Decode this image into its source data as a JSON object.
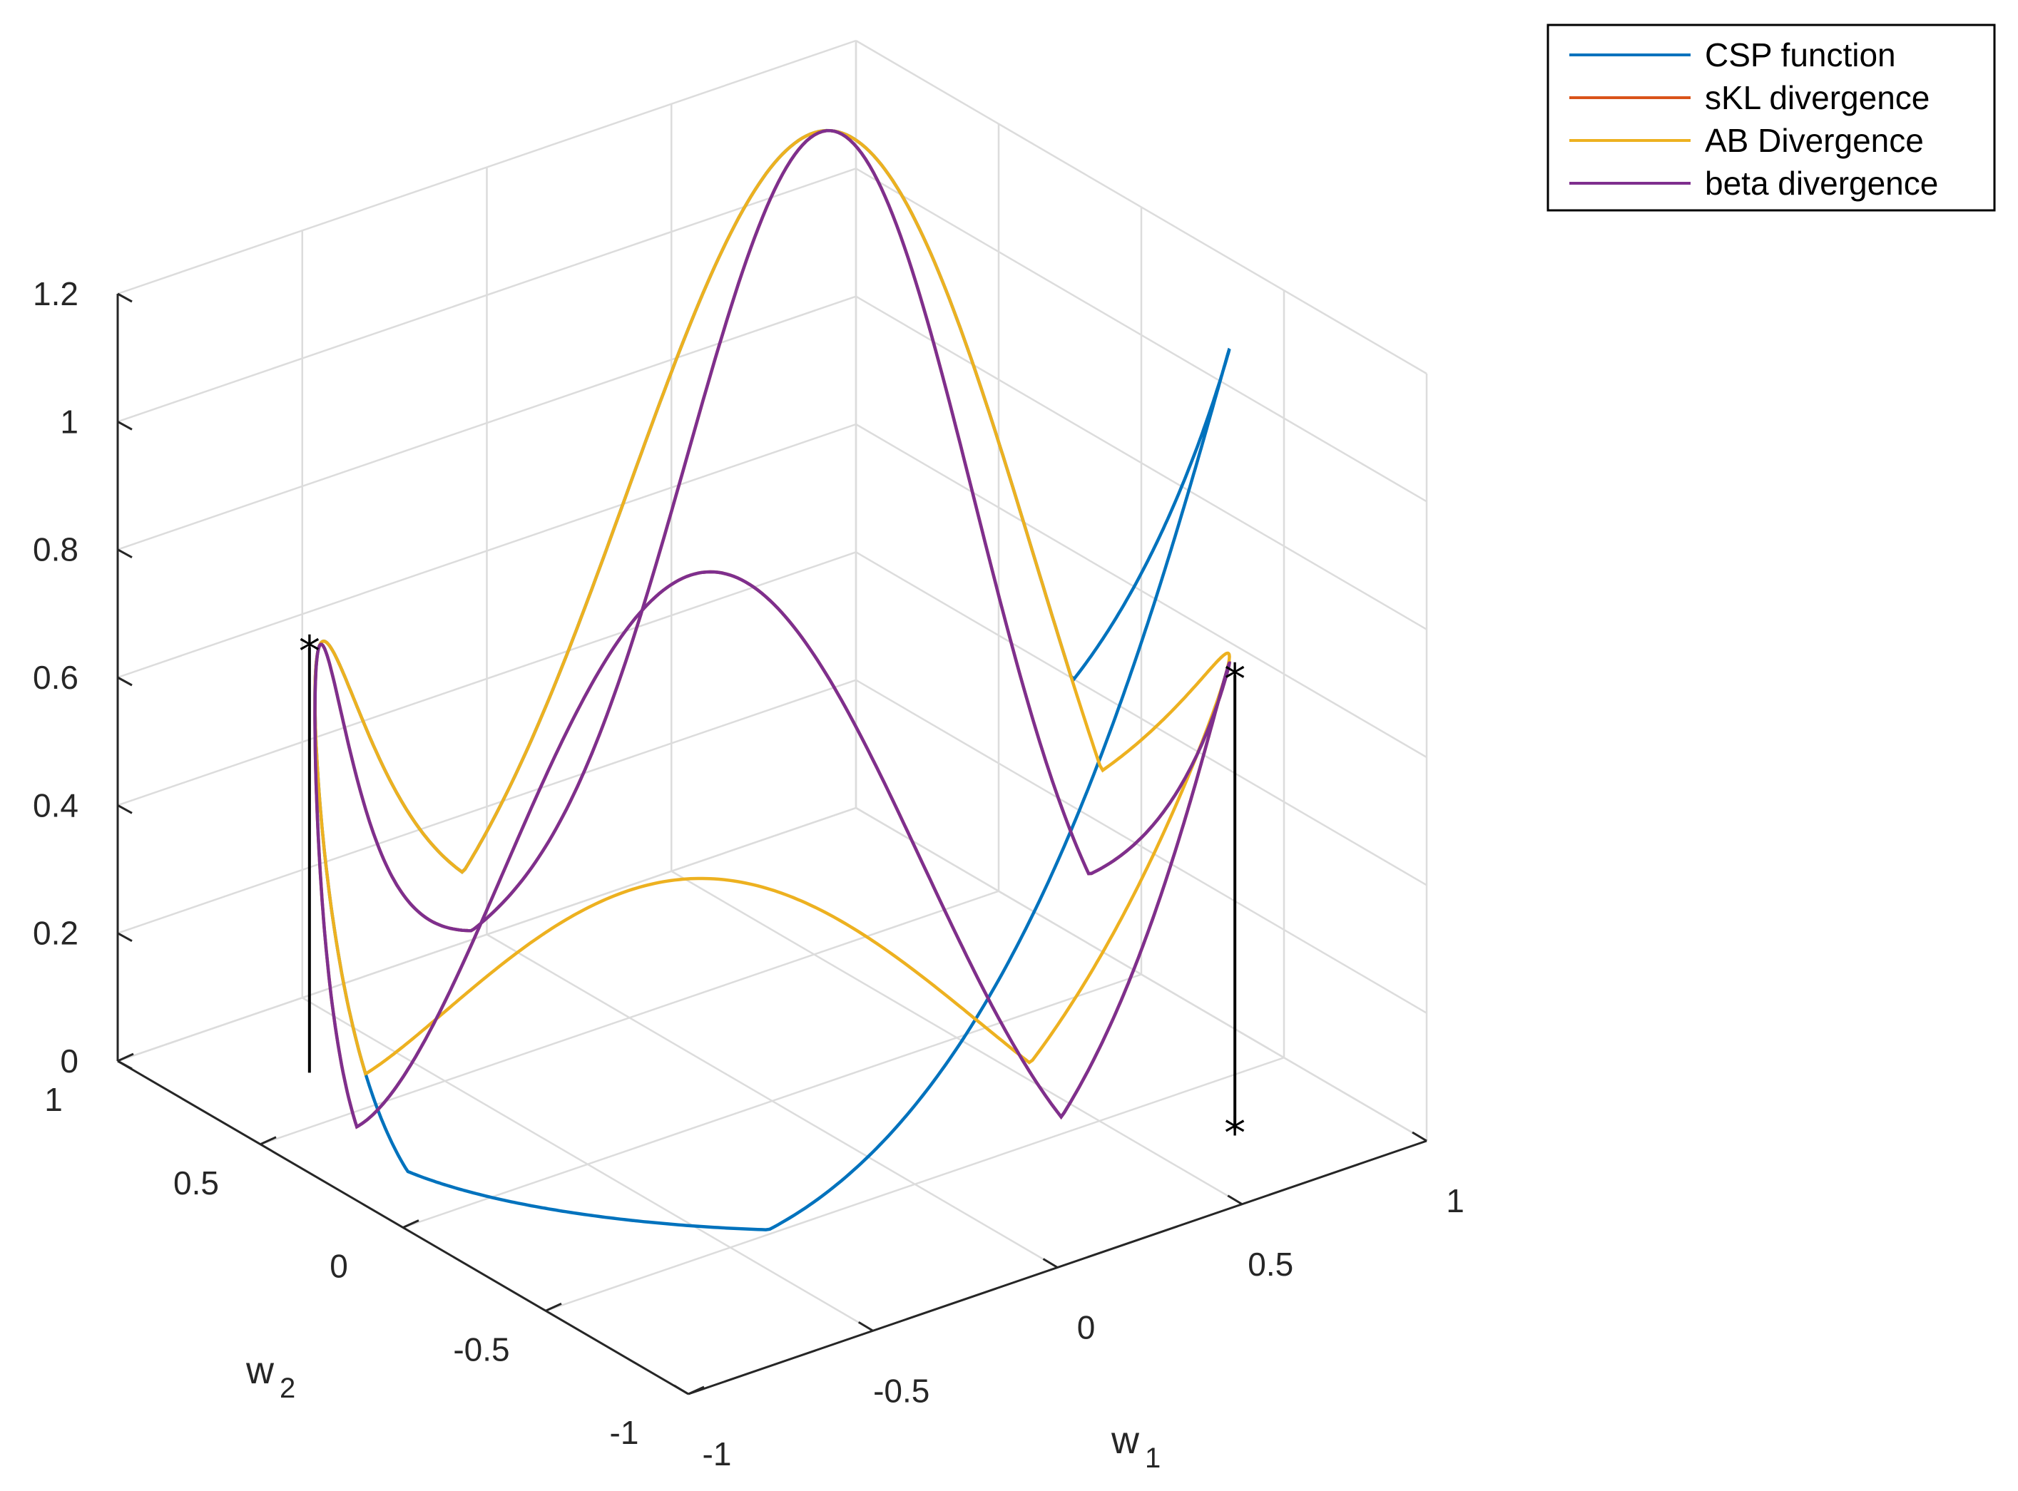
{
  "chart_data": {
    "type": "line",
    "projection": "3d",
    "xlabel": {
      "base": "w",
      "sub": "1"
    },
    "ylabel": {
      "base": "w",
      "sub": "2"
    },
    "zlabel": "",
    "xlim": [
      -1,
      1
    ],
    "ylim": [
      -1,
      1
    ],
    "zlim": [
      0,
      1.2
    ],
    "x_ticks": [
      "-1",
      "-0.5",
      "0",
      "0.5",
      "1"
    ],
    "y_ticks": [
      "-1",
      "-0.5",
      "0",
      "0.5",
      "1"
    ],
    "z_ticks": [
      "0",
      "0.2",
      "0.4",
      "0.6",
      "0.8",
      "1",
      "1.2"
    ],
    "grid": true,
    "legend_position": "top-right",
    "series": [
      {
        "name": "CSP function",
        "color": "#0072BD",
        "peaks": [
          0.665,
          0.665,
          1.2,
          1.2
        ]
      },
      {
        "name": "sKL divergence",
        "color": "#D95319",
        "peaks": [
          0.665,
          1.145,
          0.71,
          1.2
        ]
      },
      {
        "name": "AB Divergence",
        "color": "#EDB120",
        "peaks": [
          0.665,
          0.665,
          0.71,
          1.2
        ]
      },
      {
        "name": "beta divergence",
        "color": "#7E2F8E",
        "peaks": [
          0.665,
          1.145,
          0.71,
          1.2
        ]
      }
    ],
    "markers": [
      {
        "label": "*",
        "w1": -0.707,
        "w2": 0.707,
        "z": 0.665
      },
      {
        "label": "*",
        "w1": 0.707,
        "w2": -0.707,
        "z": 0.71
      },
      {
        "label": "*",
        "w1": 0.707,
        "w2": -0.707,
        "z": 0
      }
    ]
  }
}
